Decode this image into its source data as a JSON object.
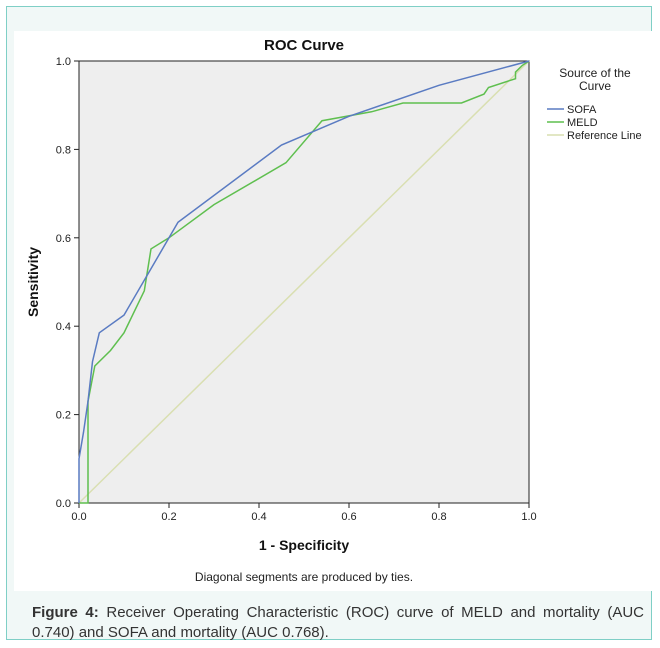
{
  "chart_data": {
    "type": "line",
    "title": "ROC Curve",
    "xlabel": "1 - Specificity",
    "ylabel": "Sensitivity",
    "xlim": [
      0.0,
      1.0
    ],
    "ylim": [
      0.0,
      1.0
    ],
    "xticks": [
      "0.0",
      "0.2",
      "0.4",
      "0.6",
      "0.8",
      "1.0"
    ],
    "yticks": [
      "0.0",
      "0.2",
      "0.4",
      "0.6",
      "0.8",
      "1.0"
    ],
    "legend_title": "Source of the Curve",
    "legend_placement": "right",
    "footnote": "Diagonal segments are produced by ties.",
    "series": [
      {
        "name": "SOFA",
        "color": "#5a7bc2",
        "points": [
          [
            0.0,
            0.0
          ],
          [
            0.0,
            0.1
          ],
          [
            0.01,
            0.16
          ],
          [
            0.02,
            0.23
          ],
          [
            0.03,
            0.32
          ],
          [
            0.045,
            0.385
          ],
          [
            0.1,
            0.425
          ],
          [
            0.22,
            0.635
          ],
          [
            0.45,
            0.81
          ],
          [
            0.6,
            0.875
          ],
          [
            0.8,
            0.945
          ],
          [
            1.0,
            1.0
          ]
        ]
      },
      {
        "name": "MELD",
        "color": "#5fbf4f",
        "points": [
          [
            0.0,
            0.0
          ],
          [
            0.02,
            0.0
          ],
          [
            0.02,
            0.23
          ],
          [
            0.035,
            0.31
          ],
          [
            0.07,
            0.345
          ],
          [
            0.1,
            0.385
          ],
          [
            0.145,
            0.48
          ],
          [
            0.16,
            0.575
          ],
          [
            0.2,
            0.6
          ],
          [
            0.3,
            0.675
          ],
          [
            0.46,
            0.77
          ],
          [
            0.54,
            0.865
          ],
          [
            0.65,
            0.885
          ],
          [
            0.72,
            0.905
          ],
          [
            0.85,
            0.905
          ],
          [
            0.9,
            0.925
          ],
          [
            0.91,
            0.94
          ],
          [
            0.97,
            0.96
          ],
          [
            0.97,
            0.975
          ],
          [
            0.985,
            0.99
          ],
          [
            1.0,
            1.0
          ]
        ]
      },
      {
        "name": "Reference Line",
        "color": "#d9dfb1",
        "points": [
          [
            0.0,
            0.0
          ],
          [
            1.0,
            1.0
          ]
        ]
      }
    ]
  },
  "caption": {
    "label": "Figure 4:",
    "text": " Receiver Operating Characteristic (ROC) curve of MELD and mortality (AUC 0.740) and SOFA and mortality (AUC 0.768)."
  }
}
